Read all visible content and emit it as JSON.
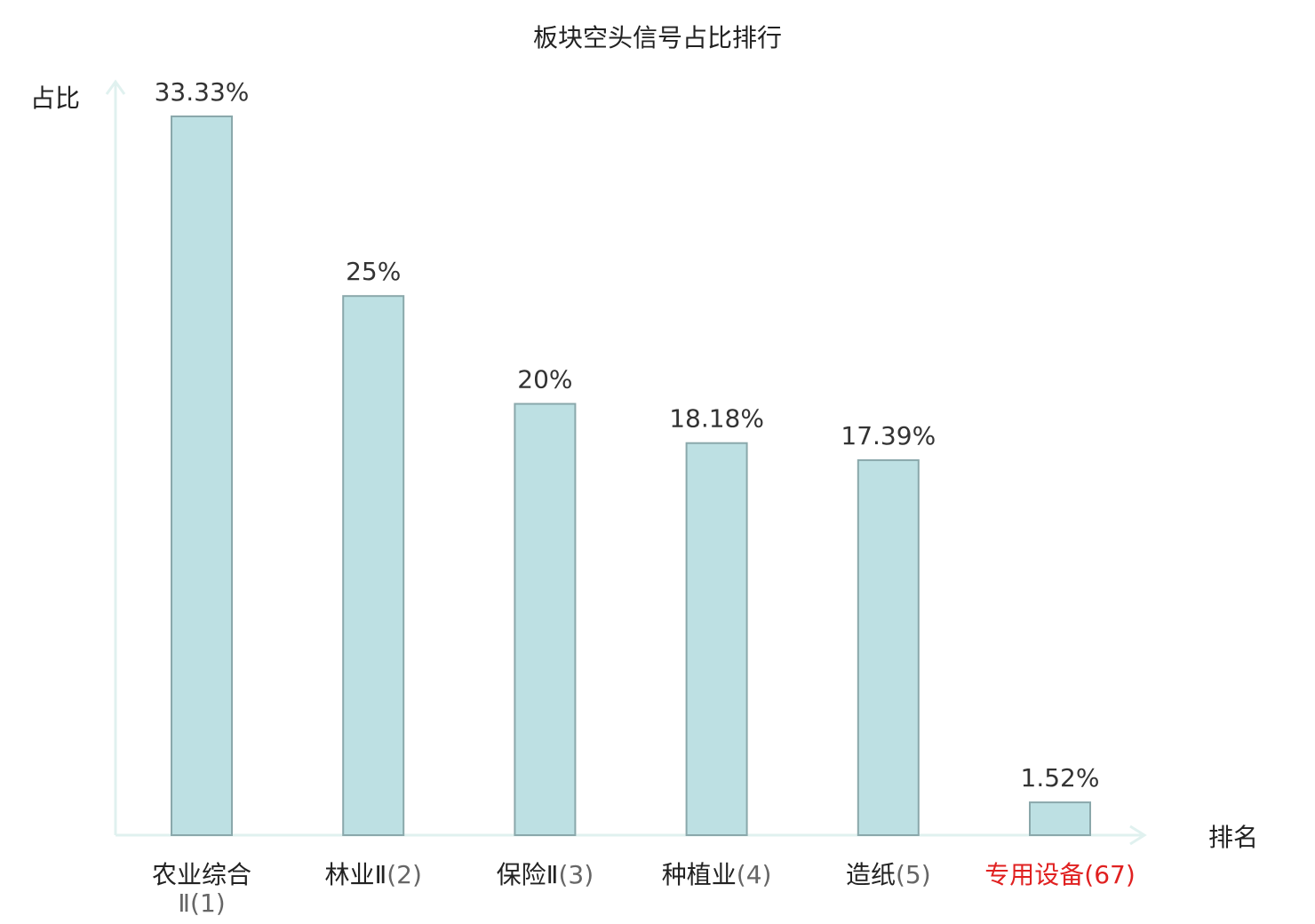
{
  "chart_data": {
    "type": "bar",
    "title": "板块空头信号占比排行",
    "xlabel": "排名",
    "ylabel": "占比",
    "ylim": [
      0,
      33.33
    ],
    "grid": false,
    "legend": "none",
    "categories": [
      {
        "name": "农业综合Ⅱ",
        "rank": "(1)",
        "highlight": false
      },
      {
        "name": "林业Ⅱ",
        "rank": "(2)",
        "highlight": false
      },
      {
        "name": "保险Ⅱ",
        "rank": "(3)",
        "highlight": false
      },
      {
        "name": "种植业",
        "rank": "(4)",
        "highlight": false
      },
      {
        "name": "造纸",
        "rank": "(5)",
        "highlight": false
      },
      {
        "name": "专用设备",
        "rank": "(67)",
        "highlight": true
      }
    ],
    "values": [
      33.33,
      25,
      20,
      18.18,
      17.39,
      1.52
    ],
    "value_labels": [
      "33.33%",
      "25%",
      "20%",
      "18.18%",
      "17.39%",
      "1.52%"
    ]
  },
  "colors": {
    "bar_fill": "#bde0e3",
    "bar_stroke": "#8aa8ab",
    "axis": "#e0f1ef",
    "text": "#222222",
    "highlight": "#e02020"
  }
}
